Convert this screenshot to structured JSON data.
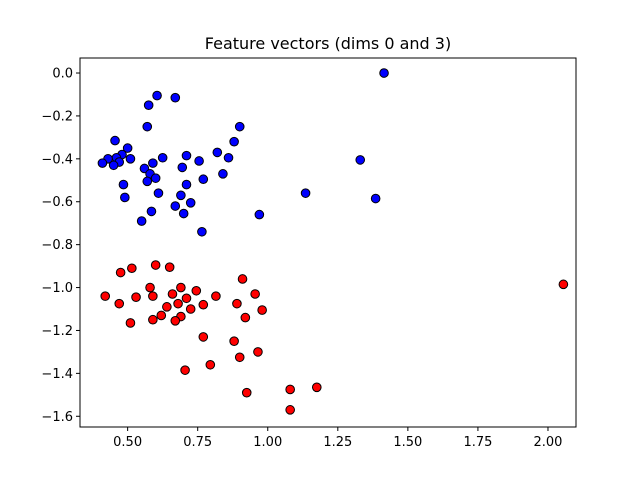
{
  "chart_data": {
    "type": "scatter",
    "title": "Feature vectors (dims 0 and 3)",
    "xlabel": "",
    "ylabel": "",
    "xlim": [
      0.33,
      2.1
    ],
    "ylim": [
      -1.65,
      0.07
    ],
    "xticks": [
      0.5,
      0.75,
      1.0,
      1.25,
      1.5,
      1.75,
      2.0
    ],
    "xtick_labels": [
      "0.50",
      "0.75",
      "1.00",
      "1.25",
      "1.50",
      "1.75",
      "2.00"
    ],
    "yticks": [
      0.0,
      -0.2,
      -0.4,
      -0.6,
      -0.8,
      -1.0,
      -1.2,
      -1.4,
      -1.6
    ],
    "ytick_labels": [
      "0.0",
      "−0.2",
      "−0.4",
      "−0.6",
      "−0.8",
      "−1.0",
      "−1.2",
      "−1.4",
      "−1.6"
    ],
    "grid": false,
    "series": [
      {
        "color": "#0000ff",
        "points": [
          [
            1.415,
            0.0
          ],
          [
            0.605,
            -0.105
          ],
          [
            0.67,
            -0.115
          ],
          [
            0.575,
            -0.15
          ],
          [
            0.57,
            -0.25
          ],
          [
            0.9,
            -0.25
          ],
          [
            0.455,
            -0.315
          ],
          [
            0.88,
            -0.32
          ],
          [
            0.5,
            -0.35
          ],
          [
            0.82,
            -0.37
          ],
          [
            0.48,
            -0.38
          ],
          [
            0.46,
            -0.395
          ],
          [
            0.625,
            -0.395
          ],
          [
            0.51,
            -0.4
          ],
          [
            0.43,
            -0.4
          ],
          [
            0.86,
            -0.395
          ],
          [
            0.71,
            -0.385
          ],
          [
            0.755,
            -0.41
          ],
          [
            0.47,
            -0.415
          ],
          [
            0.59,
            -0.42
          ],
          [
            0.41,
            -0.42
          ],
          [
            0.45,
            -0.43
          ],
          [
            0.695,
            -0.44
          ],
          [
            0.56,
            -0.445
          ],
          [
            0.58,
            -0.47
          ],
          [
            0.84,
            -0.47
          ],
          [
            0.6,
            -0.49
          ],
          [
            0.57,
            -0.505
          ],
          [
            0.77,
            -0.495
          ],
          [
            0.71,
            -0.52
          ],
          [
            0.485,
            -0.52
          ],
          [
            0.61,
            -0.56
          ],
          [
            0.69,
            -0.57
          ],
          [
            0.49,
            -0.58
          ],
          [
            0.67,
            -0.62
          ],
          [
            0.725,
            -0.605
          ],
          [
            0.585,
            -0.645
          ],
          [
            0.7,
            -0.655
          ],
          [
            0.55,
            -0.69
          ],
          [
            0.765,
            -0.74
          ],
          [
            0.97,
            -0.66
          ],
          [
            1.135,
            -0.56
          ],
          [
            1.33,
            -0.405
          ],
          [
            1.385,
            -0.585
          ]
        ]
      },
      {
        "color": "#ff0000",
        "points": [
          [
            0.6,
            -0.895
          ],
          [
            0.65,
            -0.905
          ],
          [
            0.515,
            -0.91
          ],
          [
            0.475,
            -0.93
          ],
          [
            0.91,
            -0.96
          ],
          [
            2.055,
            -0.985
          ],
          [
            0.58,
            -1.0
          ],
          [
            0.69,
            -1.0
          ],
          [
            0.745,
            -1.015
          ],
          [
            0.66,
            -1.03
          ],
          [
            0.955,
            -1.03
          ],
          [
            0.42,
            -1.04
          ],
          [
            0.53,
            -1.045
          ],
          [
            0.59,
            -1.04
          ],
          [
            0.815,
            -1.04
          ],
          [
            0.71,
            -1.05
          ],
          [
            0.47,
            -1.075
          ],
          [
            0.68,
            -1.075
          ],
          [
            0.77,
            -1.08
          ],
          [
            0.89,
            -1.075
          ],
          [
            0.64,
            -1.09
          ],
          [
            0.725,
            -1.1
          ],
          [
            0.98,
            -1.105
          ],
          [
            0.62,
            -1.13
          ],
          [
            0.69,
            -1.135
          ],
          [
            0.92,
            -1.14
          ],
          [
            0.59,
            -1.15
          ],
          [
            0.67,
            -1.155
          ],
          [
            0.51,
            -1.165
          ],
          [
            0.77,
            -1.23
          ],
          [
            0.88,
            -1.25
          ],
          [
            0.965,
            -1.3
          ],
          [
            0.9,
            -1.325
          ],
          [
            0.795,
            -1.36
          ],
          [
            0.705,
            -1.385
          ],
          [
            1.175,
            -1.465
          ],
          [
            1.08,
            -1.475
          ],
          [
            0.925,
            -1.49
          ],
          [
            1.08,
            -1.57
          ]
        ]
      }
    ]
  }
}
